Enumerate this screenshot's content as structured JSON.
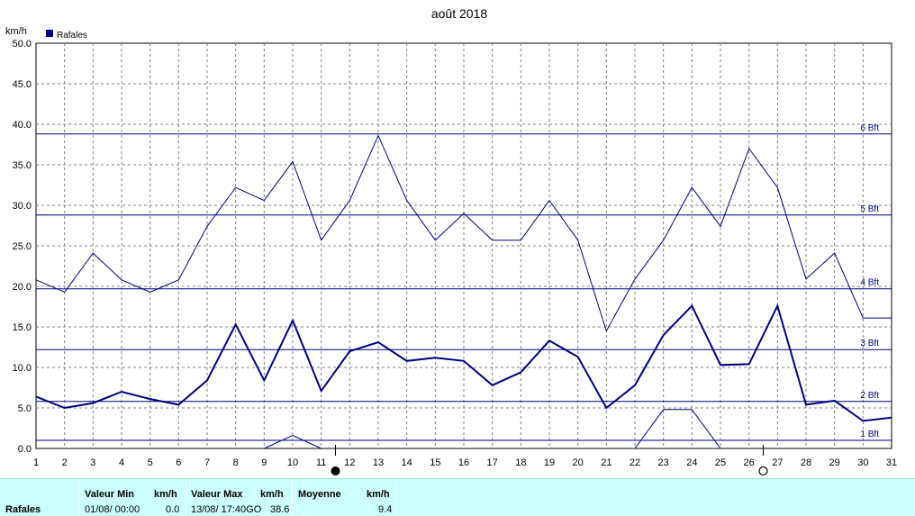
{
  "chart_data": {
    "type": "line",
    "title": "août 2018",
    "ylabel": "km/h",
    "legend": {
      "label": "Rafales",
      "color": "#000080",
      "placement": "top-left"
    },
    "ylim": [
      0,
      50
    ],
    "yticks": [
      "0.0",
      "5.0",
      "10.0",
      "15.0",
      "20.0",
      "25.0",
      "30.0",
      "35.0",
      "40.0",
      "45.0",
      "50.0"
    ],
    "x": [
      1,
      2,
      3,
      4,
      5,
      6,
      7,
      8,
      9,
      10,
      11,
      12,
      13,
      14,
      15,
      16,
      17,
      18,
      19,
      20,
      21,
      22,
      23,
      24,
      25,
      26,
      27,
      28,
      29,
      30,
      31
    ],
    "grid": true,
    "series": [
      {
        "name": "Rafales",
        "style": "thick",
        "values": [
          6.4,
          5.0,
          5.6,
          7.0,
          6.1,
          5.4,
          8.4,
          15.3,
          8.4,
          15.8,
          7.1,
          12.0,
          13.1,
          10.8,
          11.2,
          10.8,
          7.8,
          9.4,
          13.3,
          11.3,
          5.0,
          7.8,
          14.0,
          17.6,
          10.3,
          10.4,
          17.6,
          5.4,
          5.9,
          3.4,
          3.8
        ]
      },
      {
        "name": "",
        "style": "thin-upper",
        "values": [
          20.8,
          19.3,
          24.1,
          20.8,
          19.3,
          20.8,
          27.4,
          32.2,
          30.6,
          35.4,
          25.7,
          30.6,
          38.6,
          30.6,
          25.7,
          29.0,
          25.7,
          25.7,
          30.6,
          25.7,
          14.5,
          20.9,
          25.7,
          32.2,
          27.4,
          37.0,
          32.2,
          20.9,
          24.1,
          16.1,
          16.1
        ]
      },
      {
        "name": "",
        "style": "thin-lower",
        "segments": [
          {
            "x": [
              9,
              10,
              11
            ],
            "values": [
              0.0,
              1.6,
              0.0
            ]
          },
          {
            "x": [
              22,
              23,
              24,
              25
            ],
            "values": [
              0.0,
              4.8,
              4.8,
              0.0
            ]
          }
        ]
      }
    ],
    "beaufort": [
      {
        "label": "1 Bft",
        "value": 1.0
      },
      {
        "label": "2 Bft",
        "value": 5.8
      },
      {
        "label": "3 Bft",
        "value": 12.2
      },
      {
        "label": "4 Bft",
        "value": 19.7
      },
      {
        "label": "5 Bft",
        "value": 28.8
      },
      {
        "label": "6 Bft",
        "value": 38.8
      }
    ],
    "moon_markers": [
      {
        "x": 11.5,
        "phase": "new-moon",
        "symbol": "●"
      },
      {
        "x": 26.5,
        "phase": "full-moon",
        "symbol": "○"
      }
    ],
    "colors": {
      "series": "#000080",
      "beaufort": "#000080",
      "grid": "#808080",
      "axis": "#000000"
    }
  },
  "stats": {
    "series_label": "Rafales",
    "min": {
      "header": "Valeur Min",
      "unit": "km/h",
      "date": "01/08/  00:00",
      "value": "0.0"
    },
    "max": {
      "header": "Valeur Max",
      "unit": "km/h",
      "date": "13/08/  17:40GO",
      "value": "38.6"
    },
    "avg": {
      "header": "Moyenne",
      "unit": "km/h",
      "value": "9.4"
    }
  }
}
